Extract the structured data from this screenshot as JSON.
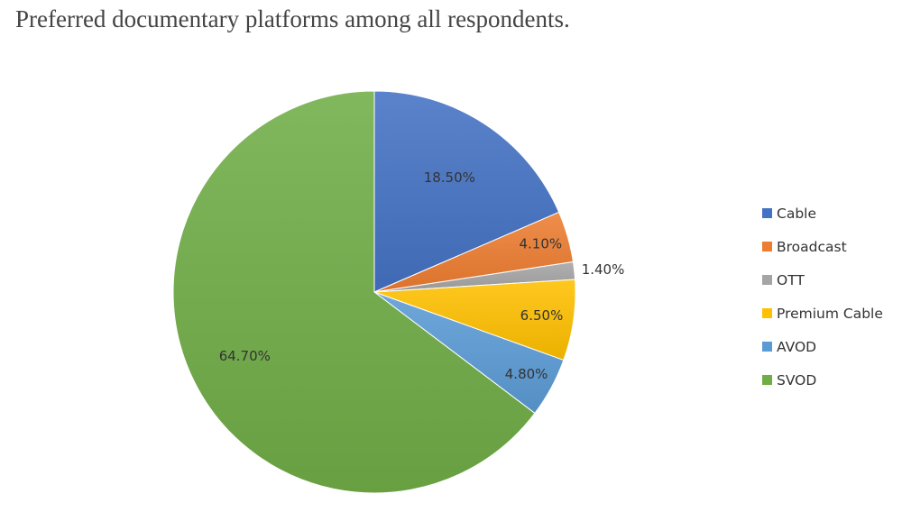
{
  "chart_data": {
    "type": "pie",
    "title": "Preferred documentary platforms among all respondents.",
    "categories": [
      "Cable",
      "Broadcast",
      "OTT",
      "Premium Cable",
      "AVOD",
      "SVOD"
    ],
    "values": [
      18.5,
      4.1,
      1.4,
      6.5,
      4.8,
      64.7
    ],
    "value_labels": [
      "18.50%",
      "4.10%",
      "1.40%",
      "6.50%",
      "4.80%",
      "64.70%"
    ],
    "colors": [
      "#4472C4",
      "#ED7D31",
      "#A5A5A5",
      "#FFC000",
      "#5B9BD5",
      "#70AD47"
    ],
    "start_angle": "12 o'clock",
    "direction": "clockwise",
    "legend_position": "right"
  }
}
